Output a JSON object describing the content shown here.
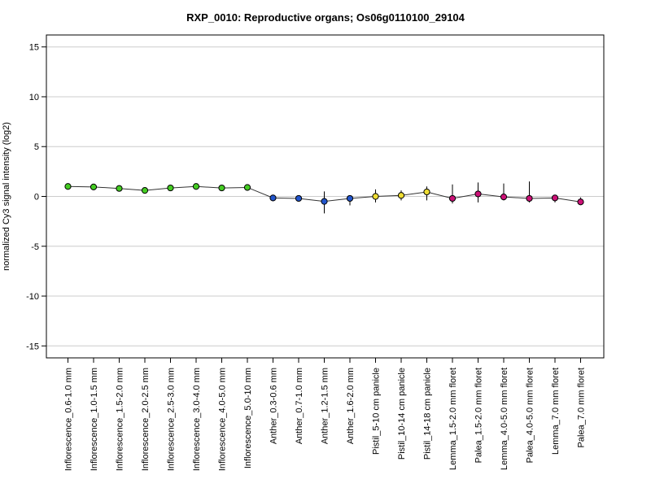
{
  "chart_data": {
    "type": "line",
    "title": "RXP_0010: Reproductive organs; Os06g0110100_29104",
    "xlabel": "",
    "ylabel": "normalized Cy3 signal intensity (log2)",
    "ylim": [
      -16.2,
      16.2
    ],
    "yticks": [
      -15,
      -10,
      -5,
      0,
      5,
      10,
      15
    ],
    "grid": true,
    "categories": [
      "Inflorescence_0.6-1.0 mm",
      "Inflorescence_1.0-1.5 mm",
      "Inflorescence_1.5-2.0 mm",
      "Inflorescence_2.0-2.5 mm",
      "Inflorescence_2.5-3.0 mm",
      "Inflorescence_3.0-4.0 mm",
      "Inflorescence_4.0-5.0 mm",
      "Inflorescence_5.0-10 mm",
      "Anther_0.3-0.6 mm",
      "Anther_0.7-1.0 mm",
      "Anther_1.2-1.5 mm",
      "Anther_1.6-2.0 mm",
      "Pistil_5-10 cm panicle",
      "Pistil_10-14 cm panicle",
      "Pistil_14-18 cm panicle",
      "Lemma_1.5-2.0 mm floret",
      "Palea_1.5-2.0 mm floret",
      "Lemma_4.0-5.0 mm floret",
      "Palea_4.0-5.0 mm floret",
      "Lemma_7.0 mm floret",
      "Palea_7.0 mm floret"
    ],
    "values": [
      1.0,
      0.95,
      0.8,
      0.6,
      0.85,
      1.0,
      0.85,
      0.9,
      -0.15,
      -0.2,
      -0.5,
      -0.2,
      0.0,
      0.1,
      0.45,
      -0.2,
      0.25,
      -0.05,
      -0.2,
      -0.15,
      -0.55
    ],
    "error_low": [
      0.95,
      0.9,
      0.75,
      0.55,
      0.8,
      0.95,
      0.8,
      0.85,
      -0.2,
      -0.25,
      -1.7,
      -0.9,
      -0.6,
      -0.4,
      -0.4,
      -0.7,
      -0.6,
      -0.4,
      -0.6,
      -0.6,
      -0.75
    ],
    "error_high": [
      1.05,
      1.0,
      0.85,
      0.65,
      0.9,
      1.05,
      0.9,
      0.95,
      -0.1,
      -0.15,
      0.5,
      0.1,
      0.7,
      0.6,
      1.0,
      1.2,
      1.4,
      1.3,
      1.5,
      0.05,
      -0.1
    ],
    "point_colors": [
      "#44cc22",
      "#44cc22",
      "#44cc22",
      "#44cc22",
      "#44cc22",
      "#44cc22",
      "#44cc22",
      "#44cc22",
      "#2255cc",
      "#2255cc",
      "#2255cc",
      "#2255cc",
      "#eedd33",
      "#eedd33",
      "#eedd33",
      "#cc1177",
      "#cc1177",
      "#cc1177",
      "#cc1177",
      "#cc1177",
      "#cc1177"
    ],
    "line_color": "#333333",
    "grid_color": "#cccccc"
  }
}
